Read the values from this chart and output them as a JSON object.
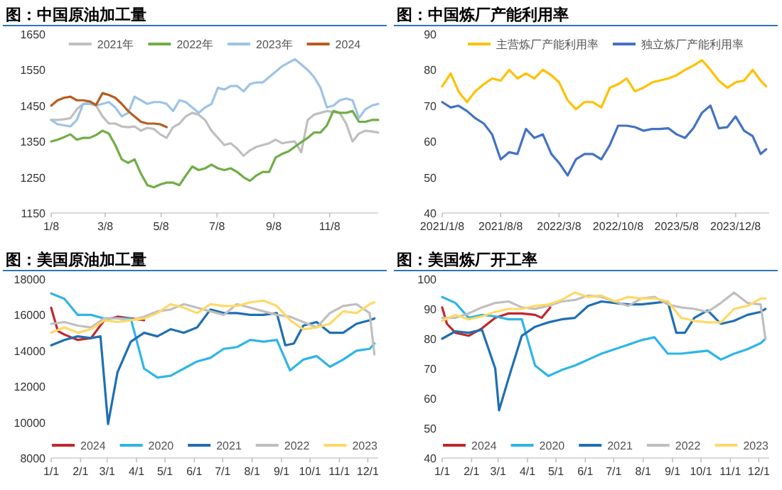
{
  "chart_data": [
    {
      "type": "line",
      "title": "图：中国原油加工量",
      "legend": "top",
      "x": [
        "--01-08",
        "--01-15",
        "--01-22",
        "--01-29",
        "--02-05",
        "--02-12",
        "--02-19",
        "--02-26",
        "--03-05",
        "--03-12",
        "--03-19",
        "--03-26",
        "--04-02",
        "--04-09",
        "--04-16",
        "--04-23",
        "--04-30",
        "--05-07",
        "--05-14",
        "--05-21",
        "--05-28",
        "--06-04",
        "--06-11",
        "--06-18",
        "--06-25",
        "--07-02",
        "--07-09",
        "--07-16",
        "--07-23",
        "--07-30",
        "--08-06",
        "--08-13",
        "--08-20",
        "--08-27",
        "--09-03",
        "--09-10",
        "--09-17",
        "--09-24",
        "--10-01",
        "--10-08",
        "--10-15",
        "--10-22",
        "--10-29",
        "--11-05",
        "--11-12",
        "--11-19",
        "--11-26",
        "--12-03",
        "--12-10",
        "--12-17",
        "--12-24",
        "--12-31"
      ],
      "xlim": [
        "--01-08",
        "--12-31"
      ],
      "xticks": [
        {
          "value": "--01-08",
          "label": "1/8"
        },
        {
          "value": "--03-08",
          "label": "3/8"
        },
        {
          "value": "--05-08",
          "label": "5/8"
        },
        {
          "value": "--07-08",
          "label": "7/8"
        },
        {
          "value": "--09-08",
          "label": "9/8"
        },
        {
          "value": "--11-08",
          "label": "11/8"
        }
      ],
      "ylim": [
        1150,
        1650
      ],
      "yticks": [
        1150,
        1250,
        1350,
        1450,
        1550,
        1650
      ],
      "series": [
        {
          "name": "2021年",
          "color": "#bfbfbf",
          "values": [
            1410,
            1410,
            1412,
            1415,
            1440,
            1455,
            1460,
            1450,
            1420,
            1400,
            1400,
            1392,
            1390,
            1392,
            1380,
            1388,
            1385,
            1370,
            1360,
            1390,
            1400,
            1420,
            1430,
            1425,
            1410,
            1380,
            1360,
            1340,
            1345,
            1330,
            1310,
            1325,
            1335,
            1340,
            1345,
            1355,
            1345,
            1348,
            1350,
            1320,
            1410,
            1425,
            1430,
            1435,
            1432,
            1430,
            1400,
            1350,
            1372,
            1380,
            1378,
            1375
          ]
        },
        {
          "name": "2022年",
          "color": "#70ad47",
          "values": [
            1350,
            1355,
            1362,
            1370,
            1355,
            1360,
            1360,
            1368,
            1380,
            1372,
            1340,
            1300,
            1290,
            1300,
            1260,
            1228,
            1222,
            1230,
            1235,
            1235,
            1228,
            1255,
            1280,
            1270,
            1275,
            1285,
            1275,
            1270,
            1275,
            1265,
            1250,
            1240,
            1255,
            1265,
            1265,
            1305,
            1315,
            1322,
            1335,
            1348,
            1360,
            1375,
            1375,
            1395,
            1435,
            1430,
            1430,
            1435,
            1405,
            1405,
            1410,
            1410
          ]
        },
        {
          "name": "2023年",
          "color": "#9dc3e6",
          "values": [
            1410,
            1398,
            1395,
            1392,
            1410,
            1455,
            1455,
            1450,
            1455,
            1460,
            1445,
            1420,
            1430,
            1475,
            1465,
            1455,
            1460,
            1460,
            1455,
            1435,
            1465,
            1460,
            1445,
            1430,
            1445,
            1455,
            1500,
            1495,
            1505,
            1505,
            1490,
            1510,
            1515,
            1515,
            1530,
            1545,
            1560,
            1570,
            1580,
            1565,
            1550,
            1530,
            1500,
            1445,
            1450,
            1465,
            1470,
            1465,
            1415,
            1440,
            1450,
            1455
          ]
        },
        {
          "name": "2024",
          "color": "#b85c1e",
          "x": [
            "--01-08",
            "--01-15",
            "--01-22",
            "--01-29",
            "--02-05",
            "--02-12",
            "--02-19",
            "--02-26",
            "--03-05",
            "--03-12",
            "--03-19",
            "--03-26",
            "--04-02",
            "--04-09",
            "--04-16",
            "--04-23",
            "--04-30",
            "--05-07",
            "--05-14"
          ],
          "values": [
            1450,
            1465,
            1472,
            1475,
            1465,
            1465,
            1462,
            1452,
            1485,
            1480,
            1472,
            1455,
            1435,
            1420,
            1405,
            1400,
            1400,
            1398,
            1390
          ]
        }
      ]
    },
    {
      "type": "line",
      "title": "图：中国炼厂产能利用率",
      "legend": "top",
      "x": [
        "2021-01-08",
        "2021-02-08",
        "2021-03-08",
        "2021-04-08",
        "2021-05-08",
        "2021-06-08",
        "2021-07-08",
        "2021-08-08",
        "2021-09-08",
        "2021-10-08",
        "2021-11-08",
        "2021-12-08",
        "2022-01-08",
        "2022-02-08",
        "2022-03-08",
        "2022-04-08",
        "2022-05-08",
        "2022-06-08",
        "2022-07-08",
        "2022-08-08",
        "2022-09-08",
        "2022-10-08",
        "2022-11-08",
        "2022-12-08",
        "2023-01-08",
        "2023-02-08",
        "2023-03-08",
        "2023-04-08",
        "2023-05-08",
        "2023-06-08",
        "2023-07-08",
        "2023-08-08",
        "2023-09-08",
        "2023-10-08",
        "2023-11-08",
        "2023-12-08",
        "2024-01-08",
        "2024-02-08",
        "2024-03-08",
        "2024-03-28"
      ],
      "xlim": [
        "2021-01-08",
        "2024-04-08"
      ],
      "xticks": [
        {
          "value": "2021-01-08",
          "label": "2021/1/8"
        },
        {
          "value": "2021-08-08",
          "label": "2021/8/8"
        },
        {
          "value": "2022-03-08",
          "label": "2022/3/8"
        },
        {
          "value": "2022-10-08",
          "label": "2022/10/8"
        },
        {
          "value": "2023-05-08",
          "label": "2023/5/8"
        },
        {
          "value": "2023-12-08",
          "label": "2023/12/8"
        }
      ],
      "ylim": [
        40,
        90
      ],
      "yticks": [
        40,
        50,
        60,
        70,
        80,
        90
      ],
      "series": [
        {
          "name": "主营炼厂产能利用率",
          "color": "#ffc000",
          "values": [
            75.4,
            79,
            74,
            71,
            74,
            76,
            77.6,
            77,
            80,
            77.6,
            79,
            77.6,
            80,
            78.5,
            76.5,
            71.5,
            69,
            71,
            71,
            69.5,
            75,
            76,
            77.6,
            74,
            75,
            76.5,
            77,
            77.6,
            78.5,
            80,
            81.2,
            82.7,
            80,
            77,
            75,
            76.5,
            77,
            80,
            77,
            75.4
          ]
        },
        {
          "name": "独立炼厂产能利用率",
          "color": "#4472c4",
          "values": [
            71,
            69.5,
            70,
            68.5,
            66.5,
            65,
            62,
            55,
            57,
            56.5,
            63.5,
            61,
            62,
            56.5,
            54,
            50.5,
            55,
            56.5,
            56.5,
            55,
            59,
            64.4,
            64.4,
            64,
            63,
            63.5,
            63.5,
            63.7,
            62,
            61,
            63.7,
            68,
            70,
            63.7,
            64,
            67,
            63,
            61.5,
            56.5,
            57.8
          ]
        }
      ]
    },
    {
      "type": "line",
      "title": "图：美国原油加工量",
      "legend": "bottom",
      "x": [
        "--01-01",
        "--01-15",
        "--01-29",
        "--02-12",
        "--02-26",
        "--03-12",
        "--03-26",
        "--04-09",
        "--04-23",
        "--05-07",
        "--05-21",
        "--06-04",
        "--06-18",
        "--07-02",
        "--07-16",
        "--07-30",
        "--08-13",
        "--08-27",
        "--09-10",
        "--09-24",
        "--10-08",
        "--10-22",
        "--11-05",
        "--11-19",
        "--12-03",
        "--12-08"
      ],
      "xlim": [
        "--01-01",
        "--12-12"
      ],
      "xticks": [
        {
          "value": "--01-01",
          "label": "1/1"
        },
        {
          "value": "--02-01",
          "label": "2/1"
        },
        {
          "value": "--03-01",
          "label": "3/1"
        },
        {
          "value": "--04-01",
          "label": "4/1"
        },
        {
          "value": "--05-01",
          "label": "5/1"
        },
        {
          "value": "--06-01",
          "label": "6/1"
        },
        {
          "value": "--07-01",
          "label": "7/1"
        },
        {
          "value": "--08-01",
          "label": "8/1"
        },
        {
          "value": "--09-01",
          "label": "9/1"
        },
        {
          "value": "--10-01",
          "label": "10/1"
        },
        {
          "value": "--11-01",
          "label": "11/1"
        },
        {
          "value": "--12-01",
          "label": "12/1"
        }
      ],
      "ylim": [
        8000,
        18000
      ],
      "yticks": [
        8000,
        10000,
        12000,
        14000,
        16000,
        18000
      ],
      "series": [
        {
          "name": "2024",
          "color": "#c0282d",
          "x": [
            "--01-01",
            "--01-08",
            "--01-15",
            "--01-29",
            "--02-12",
            "--02-26",
            "--03-12",
            "--03-26",
            "--04-09"
          ],
          "values": [
            16400,
            15100,
            14900,
            14600,
            14700,
            15700,
            15900,
            15800,
            15700
          ]
        },
        {
          "name": "2020",
          "color": "#2eb5e8",
          "values": [
            17200,
            16900,
            16000,
            16000,
            15800,
            15800,
            15800,
            13000,
            12500,
            12600,
            13000,
            13400,
            13600,
            14100,
            14200,
            14600,
            14500,
            14600,
            12900,
            13500,
            13700,
            13100,
            13500,
            14000,
            14100,
            14400
          ]
        },
        {
          "name": "2021",
          "color": "#1f6fb2",
          "x": [
            "--01-01",
            "--01-15",
            "--01-29",
            "--02-12",
            "--02-22",
            "--03-02",
            "--03-12",
            "--03-26",
            "--04-09",
            "--04-23",
            "--05-07",
            "--05-21",
            "--06-04",
            "--06-18",
            "--07-02",
            "--07-16",
            "--07-30",
            "--08-13",
            "--08-27",
            "--09-05",
            "--09-14",
            "--09-24",
            "--10-08",
            "--10-22",
            "--11-05",
            "--11-19",
            "--12-03",
            "--12-08"
          ],
          "values": [
            14300,
            14600,
            14800,
            14700,
            14800,
            9900,
            12800,
            14500,
            15000,
            14800,
            15200,
            15000,
            15300,
            16300,
            16100,
            16100,
            16000,
            16000,
            16100,
            14300,
            14400,
            15400,
            15600,
            15000,
            15000,
            15500,
            15700,
            15800
          ]
        },
        {
          "name": "2022",
          "color": "#bfbfbf",
          "values": [
            15500,
            15600,
            15400,
            15300,
            15800,
            15800,
            15700,
            15900,
            16200,
            16300,
            16600,
            16400,
            16200,
            16000,
            16600,
            16400,
            16200,
            16000,
            15900,
            15600,
            15300,
            16100,
            16500,
            16600,
            16100,
            13800
          ]
        },
        {
          "name": "2023",
          "color": "#ffd966",
          "values": [
            15000,
            15300,
            15000,
            15200,
            15700,
            15600,
            15700,
            15800,
            16100,
            16600,
            16400,
            16100,
            16600,
            16500,
            16500,
            16700,
            16800,
            16500,
            15700,
            15200,
            15300,
            15500,
            16200,
            16100,
            16600,
            16700
          ]
        }
      ]
    },
    {
      "type": "line",
      "title": "图：美国炼厂开工率",
      "legend": "bottom",
      "x": [
        "--01-01",
        "--01-15",
        "--01-29",
        "--02-12",
        "--02-26",
        "--03-12",
        "--03-26",
        "--04-09",
        "--04-23",
        "--05-07",
        "--05-21",
        "--06-04",
        "--06-18",
        "--07-02",
        "--07-16",
        "--07-30",
        "--08-13",
        "--08-27",
        "--09-10",
        "--09-24",
        "--10-08",
        "--10-22",
        "--11-05",
        "--11-19",
        "--12-03",
        "--12-08"
      ],
      "xlim": [
        "--01-01",
        "--12-12"
      ],
      "xticks": [
        {
          "value": "--01-01",
          "label": "1/1"
        },
        {
          "value": "--02-01",
          "label": "2/1"
        },
        {
          "value": "--03-01",
          "label": "3/1"
        },
        {
          "value": "--04-01",
          "label": "4/1"
        },
        {
          "value": "--05-01",
          "label": "5/1"
        },
        {
          "value": "--06-01",
          "label": "6/1"
        },
        {
          "value": "--07-01",
          "label": "7/1"
        },
        {
          "value": "--08-01",
          "label": "8/1"
        },
        {
          "value": "--09-01",
          "label": "9/1"
        },
        {
          "value": "--10-01",
          "label": "10/1"
        },
        {
          "value": "--11-01",
          "label": "11/1"
        },
        {
          "value": "--12-01",
          "label": "12/1"
        }
      ],
      "ylim": [
        40,
        100
      ],
      "yticks": [
        40,
        50,
        60,
        70,
        80,
        90,
        100
      ],
      "series": [
        {
          "name": "2024",
          "color": "#c0282d",
          "x": [
            "--01-01",
            "--01-06",
            "--01-15",
            "--01-29",
            "--02-12",
            "--02-26",
            "--03-12",
            "--03-26",
            "--04-09",
            "--04-16",
            "--04-25"
          ],
          "values": [
            90.5,
            85,
            82,
            81,
            83.5,
            87,
            88.5,
            88.5,
            88,
            87,
            90.5
          ]
        },
        {
          "name": "2020",
          "color": "#2eb5e8",
          "values": [
            94,
            92,
            87,
            88,
            87.5,
            86.5,
            86.5,
            71,
            67.5,
            69.5,
            71,
            73,
            75,
            76.5,
            78,
            79.5,
            80.5,
            75,
            75,
            75.5,
            76,
            73,
            75,
            76.5,
            78.5,
            80
          ]
        },
        {
          "name": "2021",
          "color": "#1f6fb2",
          "x": [
            "--01-01",
            "--01-15",
            "--01-29",
            "--02-12",
            "--02-26",
            "--03-02",
            "--03-12",
            "--03-26",
            "--04-09",
            "--04-23",
            "--05-07",
            "--05-21",
            "--06-04",
            "--06-18",
            "--07-02",
            "--07-16",
            "--07-30",
            "--08-13",
            "--08-27",
            "--09-05",
            "--09-14",
            "--09-24",
            "--10-08",
            "--10-22",
            "--11-05",
            "--11-19",
            "--12-03",
            "--12-08"
          ],
          "values": [
            80,
            82.5,
            82,
            83,
            70,
            56,
            66.7,
            81,
            84,
            85.5,
            86.5,
            87,
            91,
            92.5,
            92,
            91.5,
            91.5,
            92,
            92.5,
            82,
            82,
            87,
            89.5,
            85,
            86,
            88,
            89,
            90
          ]
        },
        {
          "name": "2022",
          "color": "#bfbfbf",
          "values": [
            87,
            87,
            88.5,
            90.5,
            92,
            92.5,
            90.5,
            90,
            91,
            92.5,
            93,
            94.5,
            94,
            92.5,
            91,
            93.5,
            94,
            91.5,
            90.5,
            90,
            89,
            92,
            95.5,
            92,
            91.5,
            80
          ]
        },
        {
          "name": "2023",
          "color": "#ffd966",
          "values": [
            86,
            88,
            86.5,
            87.5,
            89,
            90,
            90,
            91,
            91.5,
            93,
            95.5,
            94,
            94.5,
            92.5,
            94,
            93.5,
            93.5,
            92.5,
            87,
            86,
            85.5,
            85.5,
            90,
            91,
            93.5,
            93.5
          ]
        }
      ]
    }
  ]
}
